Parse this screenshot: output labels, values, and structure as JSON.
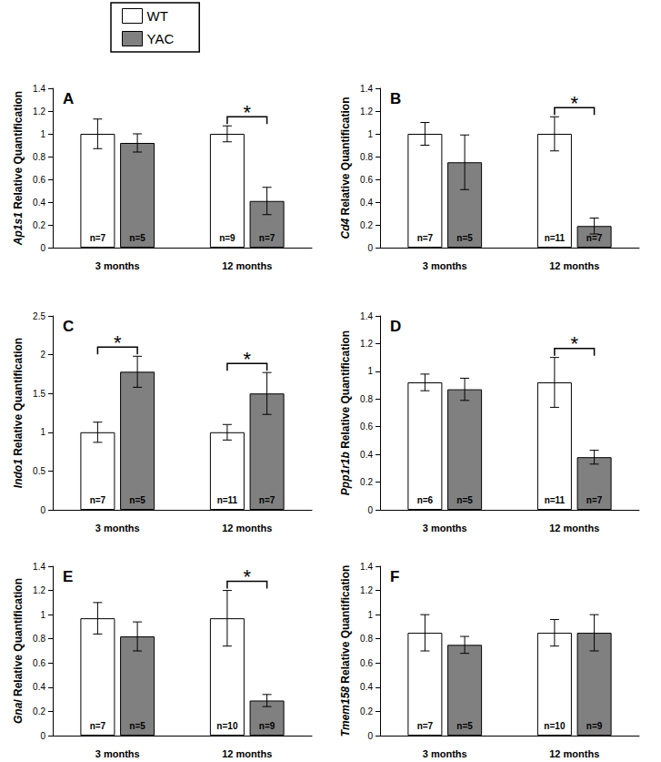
{
  "chart_data": [
    {
      "type": "bar",
      "title": "A",
      "ylabel": "Ap1s1 Relative Quantification",
      "legend": "top-left",
      "grid": false,
      "categories": [
        "3 months",
        "12 months"
      ],
      "ylim": [
        0,
        1.4
      ],
      "yticks": [
        0,
        0.2,
        0.4,
        0.6,
        0.8,
        1,
        1.2,
        1.4
      ],
      "series": [
        {
          "name": "WT",
          "color": "#ffffff",
          "values": [
            1.0,
            1.0
          ],
          "errors": [
            0.13,
            0.07
          ],
          "n_labels": [
            "n=7",
            "n=9"
          ]
        },
        {
          "name": "YAC",
          "color": "#808080",
          "values": [
            0.92,
            0.41
          ],
          "errors": [
            0.08,
            0.12
          ],
          "n_labels": [
            "n=5",
            "n=7"
          ]
        }
      ],
      "annotations": [
        {
          "category": "12 months",
          "text": "*"
        }
      ]
    },
    {
      "type": "bar",
      "title": "B",
      "ylabel": "Cd4 Relative Quantification",
      "grid": false,
      "categories": [
        "3 months",
        "12 months"
      ],
      "ylim": [
        0,
        1.4
      ],
      "yticks": [
        0,
        0.2,
        0.4,
        0.6,
        0.8,
        1,
        1.2,
        1.4
      ],
      "series": [
        {
          "name": "WT",
          "color": "#ffffff",
          "values": [
            1.0,
            1.0
          ],
          "errors": [
            0.1,
            0.15
          ],
          "n_labels": [
            "n=7",
            "n=11"
          ]
        },
        {
          "name": "YAC",
          "color": "#808080",
          "values": [
            0.75,
            0.19
          ],
          "errors": [
            0.24,
            0.07
          ],
          "n_labels": [
            "n=5",
            "n=7"
          ]
        }
      ],
      "annotations": [
        {
          "category": "12 months",
          "text": "*"
        }
      ]
    },
    {
      "type": "bar",
      "title": "C",
      "ylabel": "Indo1 Relative Quantification",
      "grid": false,
      "categories": [
        "3 months",
        "12 months"
      ],
      "ylim": [
        0,
        2.5
      ],
      "yticks": [
        0,
        0.5,
        1,
        1.5,
        2,
        2.5
      ],
      "series": [
        {
          "name": "WT",
          "color": "#ffffff",
          "values": [
            1.0,
            1.0
          ],
          "errors": [
            0.13,
            0.1
          ],
          "n_labels": [
            "n=7",
            "n=11"
          ]
        },
        {
          "name": "YAC",
          "color": "#808080",
          "values": [
            1.78,
            1.5
          ],
          "errors": [
            0.2,
            0.27
          ],
          "n_labels": [
            "n=5",
            "n=7"
          ]
        }
      ],
      "annotations": [
        {
          "category": "3 months",
          "text": "*"
        },
        {
          "category": "12 months",
          "text": "*"
        }
      ]
    },
    {
      "type": "bar",
      "title": "D",
      "ylabel": "Ppp1r1b Relative Quantification",
      "grid": false,
      "categories": [
        "3 months",
        "12 months"
      ],
      "ylim": [
        0,
        1.4
      ],
      "yticks": [
        0,
        0.2,
        0.4,
        0.6,
        0.8,
        1,
        1.2,
        1.4
      ],
      "series": [
        {
          "name": "WT",
          "color": "#ffffff",
          "values": [
            0.92,
            0.92
          ],
          "errors": [
            0.06,
            0.18
          ],
          "n_labels": [
            "n=6",
            "n=11"
          ]
        },
        {
          "name": "YAC",
          "color": "#808080",
          "values": [
            0.87,
            0.38
          ],
          "errors": [
            0.08,
            0.05
          ],
          "n_labels": [
            "n=5",
            "n=7"
          ]
        }
      ],
      "annotations": [
        {
          "category": "12 months",
          "text": "*"
        }
      ]
    },
    {
      "type": "bar",
      "title": "E",
      "ylabel": "Gnal Relative Quantification",
      "grid": false,
      "categories": [
        "3 months",
        "12 months"
      ],
      "ylim": [
        0,
        1.4
      ],
      "yticks": [
        0,
        0.2,
        0.4,
        0.6,
        0.8,
        1,
        1.2,
        1.4
      ],
      "series": [
        {
          "name": "WT",
          "color": "#ffffff",
          "values": [
            0.97,
            0.97
          ],
          "errors": [
            0.13,
            0.23
          ],
          "n_labels": [
            "n=7",
            "n=10"
          ]
        },
        {
          "name": "YAC",
          "color": "#808080",
          "values": [
            0.82,
            0.29
          ],
          "errors": [
            0.12,
            0.05
          ],
          "n_labels": [
            "n=5",
            "n=9"
          ]
        }
      ],
      "annotations": [
        {
          "category": "12 months",
          "text": "*"
        }
      ]
    },
    {
      "type": "bar",
      "title": "F",
      "ylabel": "Tmem158 Relative Quantification",
      "grid": false,
      "categories": [
        "3 months",
        "12 months"
      ],
      "ylim": [
        0,
        1.4
      ],
      "yticks": [
        0,
        0.2,
        0.4,
        0.6,
        0.8,
        1,
        1.2,
        1.4
      ],
      "series": [
        {
          "name": "WT",
          "color": "#ffffff",
          "values": [
            0.85,
            0.85
          ],
          "errors": [
            0.15,
            0.11
          ],
          "n_labels": [
            "n=7",
            "n=10"
          ]
        },
        {
          "name": "YAC",
          "color": "#808080",
          "values": [
            0.75,
            0.85
          ],
          "errors": [
            0.07,
            0.15
          ],
          "n_labels": [
            "n=5",
            "n=9"
          ]
        }
      ],
      "annotations": []
    }
  ]
}
